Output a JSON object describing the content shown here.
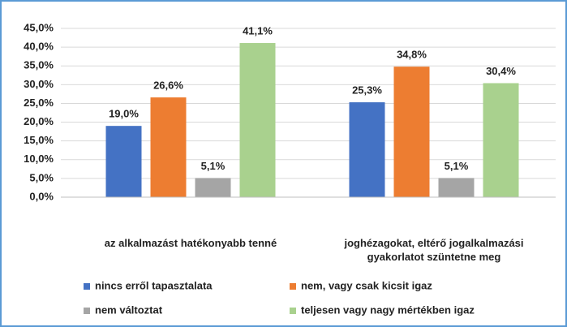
{
  "chart_data": {
    "type": "bar",
    "categories": [
      "az alkalmazást hatékonyabb tenné",
      "joghézagokat, eltérő jogalkalmazási gyakorlatot szüntetne meg"
    ],
    "series": [
      {
        "name": "nincs erről tapasztalata",
        "color": "#4472c4",
        "values": [
          19.0,
          25.3
        ],
        "value_labels": [
          "19,0%",
          "25,3%"
        ]
      },
      {
        "name": "nem, vagy csak kicsit igaz",
        "color": "#ed7d31",
        "values": [
          26.6,
          34.8
        ],
        "value_labels": [
          "26,6%",
          "34,8%"
        ]
      },
      {
        "name": "nem változtat",
        "color": "#a5a5a5",
        "values": [
          5.1,
          5.1
        ],
        "value_labels": [
          "5,1%",
          "5,1%"
        ]
      },
      {
        "name": "teljesen vagy nagy mértékben igaz",
        "color": "#a9d18e",
        "values": [
          41.1,
          30.4
        ],
        "value_labels": [
          "41,1%",
          "30,4%"
        ]
      }
    ],
    "ylim": [
      0,
      45
    ],
    "yticks": [
      {
        "value": 0,
        "label": "0,0%"
      },
      {
        "value": 5,
        "label": "5,0%"
      },
      {
        "value": 10,
        "label": "10,0%"
      },
      {
        "value": 15,
        "label": "15,0%"
      },
      {
        "value": 20,
        "label": "20,0%"
      },
      {
        "value": 25,
        "label": "25,0%"
      },
      {
        "value": 30,
        "label": "30,0%"
      },
      {
        "value": 35,
        "label": "35,0%"
      },
      {
        "value": 40,
        "label": "40,0%"
      },
      {
        "value": 45,
        "label": "45,0%"
      }
    ],
    "grid": true,
    "legend": "bottom"
  }
}
